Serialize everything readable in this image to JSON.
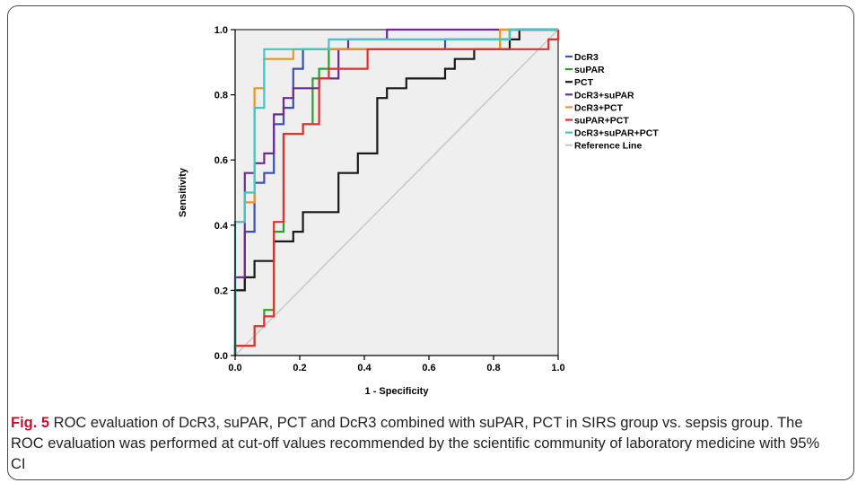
{
  "chart_data": {
    "type": "line",
    "title": "",
    "xlabel": "1 - Specificity",
    "ylabel": "Sensitivity",
    "xlim": [
      0,
      1
    ],
    "ylim": [
      0,
      1
    ],
    "xticks": [
      "0.0",
      "0.2",
      "0.4",
      "0.6",
      "0.8",
      "1.0"
    ],
    "yticks": [
      "0.0",
      "0.2",
      "0.4",
      "0.6",
      "0.8",
      "1.0"
    ],
    "legend_position": "right",
    "grid": false,
    "plot_background": "#efefef",
    "series": [
      {
        "name": "DcR3",
        "color": "#3b4fb5",
        "points": [
          [
            0,
            0
          ],
          [
            0,
            0.2
          ],
          [
            0.03,
            0.2
          ],
          [
            0.03,
            0.38
          ],
          [
            0.06,
            0.38
          ],
          [
            0.06,
            0.53
          ],
          [
            0.09,
            0.53
          ],
          [
            0.09,
            0.56
          ],
          [
            0.12,
            0.56
          ],
          [
            0.12,
            0.71
          ],
          [
            0.15,
            0.71
          ],
          [
            0.15,
            0.76
          ],
          [
            0.18,
            0.76
          ],
          [
            0.18,
            0.88
          ],
          [
            0.21,
            0.88
          ],
          [
            0.21,
            0.94
          ],
          [
            0.65,
            0.94
          ],
          [
            0.65,
            0.97
          ],
          [
            0.85,
            0.97
          ],
          [
            0.85,
            1
          ],
          [
            1,
            1
          ]
        ]
      },
      {
        "name": "suPAR",
        "color": "#2ca02c",
        "points": [
          [
            0,
            0
          ],
          [
            0,
            0.03
          ],
          [
            0.06,
            0.03
          ],
          [
            0.06,
            0.09
          ],
          [
            0.09,
            0.09
          ],
          [
            0.09,
            0.14
          ],
          [
            0.12,
            0.14
          ],
          [
            0.12,
            0.38
          ],
          [
            0.15,
            0.38
          ],
          [
            0.15,
            0.68
          ],
          [
            0.21,
            0.68
          ],
          [
            0.21,
            0.71
          ],
          [
            0.24,
            0.71
          ],
          [
            0.24,
            0.85
          ],
          [
            0.26,
            0.85
          ],
          [
            0.26,
            0.88
          ],
          [
            0.29,
            0.88
          ],
          [
            0.29,
            0.94
          ],
          [
            0.82,
            0.94
          ],
          [
            0.82,
            0.97
          ],
          [
            0.85,
            0.97
          ],
          [
            0.85,
            1
          ],
          [
            1,
            1
          ]
        ]
      },
      {
        "name": "PCT",
        "color": "#1a1a1a",
        "points": [
          [
            0,
            0
          ],
          [
            0,
            0.2
          ],
          [
            0.03,
            0.2
          ],
          [
            0.03,
            0.24
          ],
          [
            0.06,
            0.24
          ],
          [
            0.06,
            0.29
          ],
          [
            0.12,
            0.29
          ],
          [
            0.12,
            0.35
          ],
          [
            0.18,
            0.35
          ],
          [
            0.18,
            0.38
          ],
          [
            0.21,
            0.38
          ],
          [
            0.21,
            0.44
          ],
          [
            0.32,
            0.44
          ],
          [
            0.32,
            0.56
          ],
          [
            0.38,
            0.56
          ],
          [
            0.38,
            0.62
          ],
          [
            0.44,
            0.62
          ],
          [
            0.44,
            0.79
          ],
          [
            0.47,
            0.79
          ],
          [
            0.47,
            0.82
          ],
          [
            0.53,
            0.82
          ],
          [
            0.53,
            0.85
          ],
          [
            0.65,
            0.85
          ],
          [
            0.65,
            0.88
          ],
          [
            0.68,
            0.88
          ],
          [
            0.68,
            0.91
          ],
          [
            0.74,
            0.91
          ],
          [
            0.74,
            0.94
          ],
          [
            0.85,
            0.94
          ],
          [
            0.85,
            0.97
          ],
          [
            0.88,
            0.97
          ],
          [
            0.88,
            1
          ],
          [
            1,
            1
          ]
        ]
      },
      {
        "name": "DcR3+suPAR",
        "color": "#6a2c91",
        "points": [
          [
            0,
            0
          ],
          [
            0,
            0.24
          ],
          [
            0.03,
            0.24
          ],
          [
            0.03,
            0.38
          ],
          [
            0.03,
            0.56
          ],
          [
            0.06,
            0.56
          ],
          [
            0.06,
            0.59
          ],
          [
            0.09,
            0.59
          ],
          [
            0.09,
            0.62
          ],
          [
            0.12,
            0.62
          ],
          [
            0.12,
            0.74
          ],
          [
            0.15,
            0.74
          ],
          [
            0.15,
            0.79
          ],
          [
            0.18,
            0.79
          ],
          [
            0.18,
            0.82
          ],
          [
            0.26,
            0.82
          ],
          [
            0.26,
            0.85
          ],
          [
            0.32,
            0.85
          ],
          [
            0.32,
            0.94
          ],
          [
            0.35,
            0.94
          ],
          [
            0.35,
            0.97
          ],
          [
            0.47,
            0.97
          ],
          [
            0.47,
            1
          ],
          [
            1,
            1
          ]
        ]
      },
      {
        "name": "DcR3+PCT",
        "color": "#f0921e",
        "points": [
          [
            0,
            0
          ],
          [
            0,
            0.41
          ],
          [
            0.03,
            0.41
          ],
          [
            0.03,
            0.47
          ],
          [
            0.06,
            0.47
          ],
          [
            0.06,
            0.82
          ],
          [
            0.09,
            0.82
          ],
          [
            0.09,
            0.91
          ],
          [
            0.18,
            0.91
          ],
          [
            0.18,
            0.94
          ],
          [
            0.82,
            0.94
          ],
          [
            0.82,
            1
          ],
          [
            1,
            1
          ]
        ]
      },
      {
        "name": "suPAR+PCT",
        "color": "#e03030",
        "points": [
          [
            0,
            0
          ],
          [
            0,
            0.03
          ],
          [
            0.06,
            0.03
          ],
          [
            0.06,
            0.09
          ],
          [
            0.09,
            0.09
          ],
          [
            0.09,
            0.12
          ],
          [
            0.12,
            0.12
          ],
          [
            0.12,
            0.41
          ],
          [
            0.15,
            0.41
          ],
          [
            0.15,
            0.68
          ],
          [
            0.21,
            0.68
          ],
          [
            0.21,
            0.71
          ],
          [
            0.26,
            0.71
          ],
          [
            0.26,
            0.85
          ],
          [
            0.29,
            0.85
          ],
          [
            0.29,
            0.88
          ],
          [
            0.41,
            0.88
          ],
          [
            0.41,
            0.94
          ],
          [
            0.97,
            0.94
          ],
          [
            0.97,
            0.97
          ],
          [
            1,
            0.97
          ],
          [
            1,
            1
          ]
        ]
      },
      {
        "name": "DcR3+suPAR+PCT",
        "color": "#3ec7c7",
        "points": [
          [
            0,
            0
          ],
          [
            0,
            0.41
          ],
          [
            0.03,
            0.41
          ],
          [
            0.03,
            0.5
          ],
          [
            0.06,
            0.5
          ],
          [
            0.06,
            0.76
          ],
          [
            0.09,
            0.76
          ],
          [
            0.09,
            0.94
          ],
          [
            0.29,
            0.94
          ],
          [
            0.29,
            0.97
          ],
          [
            0.85,
            0.97
          ],
          [
            0.85,
            1
          ],
          [
            1,
            1
          ]
        ]
      },
      {
        "name": "Reference Line",
        "color": "#c8c8c8",
        "points": [
          [
            0,
            0
          ],
          [
            1,
            1
          ]
        ]
      }
    ]
  },
  "caption": {
    "label": "Fig. 5",
    "text": " ROC evaluation of DcR3, suPAR, PCT and DcR3 combined with suPAR, PCT in SIRS group vs. sepsis group. The ROC evaluation was performed at cut-off values recommended by the scientific community of laboratory medicine with 95% CI"
  }
}
